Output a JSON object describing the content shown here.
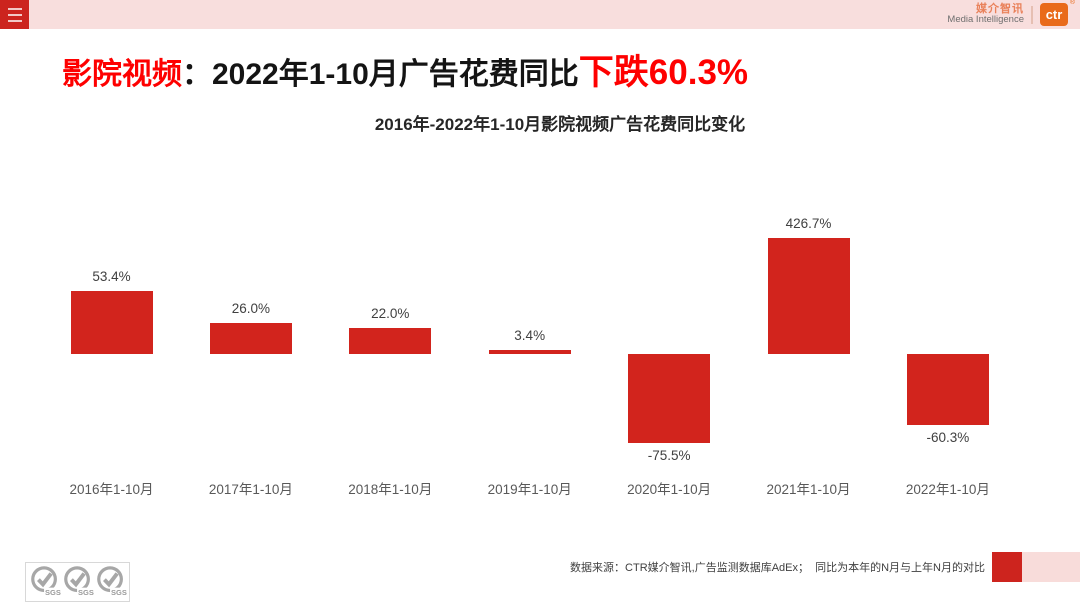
{
  "header": {
    "strip_color": "#f8dedd",
    "menu": {
      "icon": "hamburger-icon"
    },
    "brand": {
      "cn": "媒介智讯",
      "en": "Media Intelligence",
      "logo_text": "ctr",
      "registered_mark": "®",
      "logo_color": "#e96a1a"
    }
  },
  "title": {
    "prefix": "影院视频",
    "colon": "：",
    "middle": "2022年1-10月广告花费同比",
    "highlight": "下跌60.3%",
    "accent_color": "#fe0000"
  },
  "chart_data": {
    "type": "bar",
    "title": "2016年-2022年1-10月影院视频广告花费同比变化",
    "categories": [
      "2016年1-10月",
      "2017年1-10月",
      "2018年1-10月",
      "2019年1-10月",
      "2020年1-10月",
      "2021年1-10月",
      "2022年1-10月"
    ],
    "values": [
      53.4,
      26.0,
      22.0,
      3.4,
      -75.5,
      426.7,
      -60.3
    ],
    "labels": [
      "53.4%",
      "26.0%",
      "22.0%",
      "3.4%",
      "-75.5%",
      "426.7%",
      "-60.3%"
    ],
    "unit": "%",
    "bar_color": "#d2241d",
    "value_label_color": "#404040",
    "axis_label_color": "#595959",
    "grid": false,
    "legend": false,
    "baseline": 0,
    "tallest_bar_clipped": "426.7% bar drawn truncated to fit plot"
  },
  "footer": {
    "source": "数据来源：CTR媒介智讯,广告监测数据库AdEx；  同比为本年的N月与上年N月的对比",
    "sgs_label": "SGS",
    "red_square_color": "#cd241e",
    "pink_square_color": "#f8dcda"
  }
}
